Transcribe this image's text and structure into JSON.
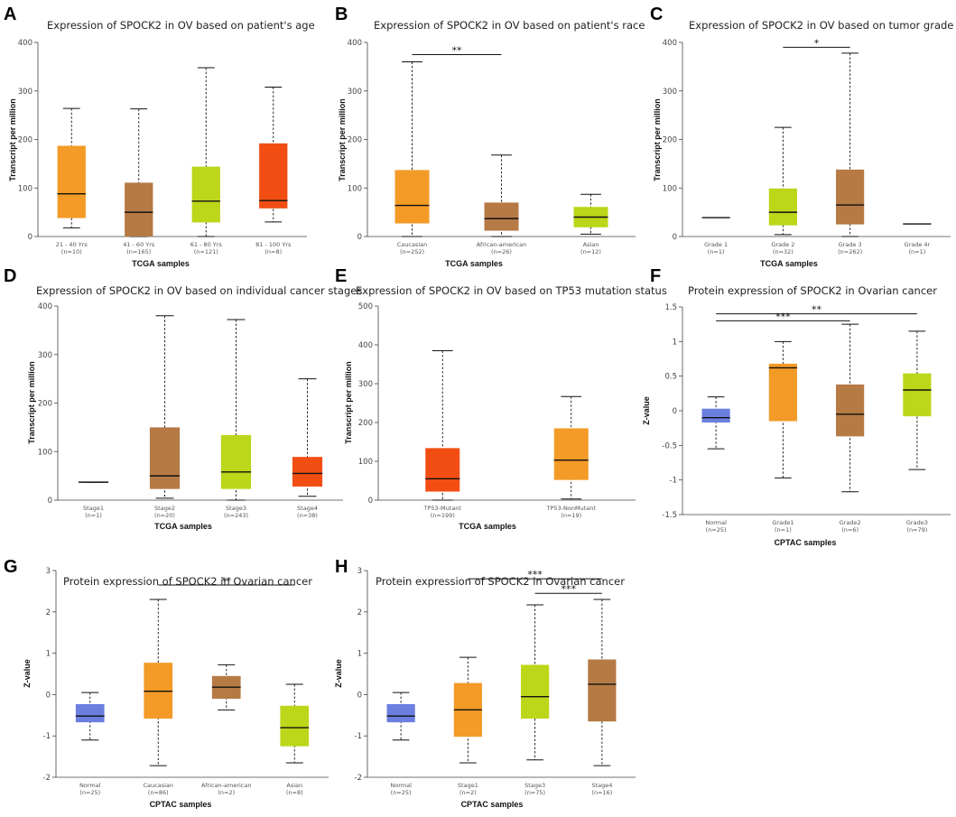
{
  "figure": {
    "panels": [
      "A",
      "B",
      "C",
      "D",
      "E",
      "F",
      "G",
      "H"
    ]
  },
  "chart_data": [
    {
      "panel": "A",
      "type": "boxplot",
      "title": "Expression of SPOCK2 in OV based on patient's age",
      "xlabel": "TCGA samples",
      "ylabel": "Transcript per million",
      "ylim": [
        0,
        400
      ],
      "yticks": [
        0,
        100,
        200,
        300,
        400
      ],
      "categories": [
        "21 - 40 Yrs",
        "41 - 60 Yrs",
        "61 - 80 Yrs",
        "81 - 100 Yrs"
      ],
      "counts": [
        "(n=10)",
        "(n=165)",
        "(n=121)",
        "(n=8)"
      ],
      "colors": [
        "#f39a27",
        "#b67a45",
        "#bcd619",
        "#f24e13"
      ],
      "boxes": [
        {
          "min": 18,
          "q1": 38,
          "median": 88,
          "q3": 187,
          "max": 264
        },
        {
          "min": 0,
          "q1": 0,
          "median": 50,
          "q3": 111,
          "max": 263
        },
        {
          "min": 0,
          "q1": 29,
          "median": 73,
          "q3": 144,
          "max": 348
        },
        {
          "min": 30,
          "q1": 58,
          "median": 74,
          "q3": 192,
          "max": 308
        }
      ],
      "significance": []
    },
    {
      "panel": "B",
      "type": "boxplot",
      "title": "Expression of SPOCK2 in OV based on patient's race",
      "xlabel": "TCGA samples",
      "ylabel": "Transcript per million",
      "ylim": [
        0,
        400
      ],
      "yticks": [
        0,
        100,
        200,
        300,
        400
      ],
      "categories": [
        "Caucasian",
        "African-american",
        "Asian"
      ],
      "counts": [
        "(n=252)",
        "(n=26)",
        "(n=12)"
      ],
      "colors": [
        "#f39a27",
        "#b67a45",
        "#bcd619"
      ],
      "boxes": [
        {
          "min": 0,
          "q1": 27,
          "median": 64,
          "q3": 137,
          "max": 360
        },
        {
          "min": 0,
          "q1": 12,
          "median": 37,
          "q3": 70,
          "max": 168
        },
        {
          "min": 5,
          "q1": 19,
          "median": 40,
          "q3": 61,
          "max": 87
        }
      ],
      "significance": [
        {
          "from": 0,
          "to": 1,
          "label": "**",
          "y": 375
        }
      ]
    },
    {
      "panel": "C",
      "type": "boxplot",
      "title": "Expression of SPOCK2 in OV based on tumor grade",
      "xlabel": "TCGA samples",
      "ylabel": "Transcript per million",
      "ylim": [
        0,
        400
      ],
      "yticks": [
        0,
        100,
        200,
        300,
        400
      ],
      "categories": [
        "Grade 1",
        "Grade 2",
        "Grade 3",
        "Grade 4r"
      ],
      "counts": [
        "(n=1)",
        "(n=32)",
        "(n=262)",
        "(n=1)"
      ],
      "colors": [
        "#f39a27",
        "#bcd619",
        "#b67a45",
        "#f24e13"
      ],
      "boxes": [
        {
          "min": 39,
          "q1": 39,
          "median": 39,
          "q3": 39,
          "max": 39
        },
        {
          "min": 4,
          "q1": 23,
          "median": 50,
          "q3": 99,
          "max": 225
        },
        {
          "min": 0,
          "q1": 25,
          "median": 65,
          "q3": 138,
          "max": 378
        },
        {
          "min": 26,
          "q1": 26,
          "median": 26,
          "q3": 26,
          "max": 26
        }
      ],
      "significance": [
        {
          "from": 1,
          "to": 2,
          "label": "*",
          "y": 390
        }
      ]
    },
    {
      "panel": "D",
      "type": "boxplot",
      "title": "Expression of SPOCK2 in OV based on individual cancer stages",
      "xlabel": "TCGA samples",
      "ylabel": "Transcript per million",
      "ylim": [
        0,
        400
      ],
      "yticks": [
        0,
        100,
        200,
        300,
        400
      ],
      "categories": [
        "Stage1",
        "Stage2",
        "Stage3",
        "Stage4"
      ],
      "counts": [
        "(n=1)",
        "(n=20)",
        "(n=243)",
        "(n=38)"
      ],
      "colors": [
        "#f39a27",
        "#b67a45",
        "#bcd619",
        "#f24e13"
      ],
      "boxes": [
        {
          "min": 37,
          "q1": 37,
          "median": 37,
          "q3": 37,
          "max": 37
        },
        {
          "min": 4,
          "q1": 23,
          "median": 50,
          "q3": 150,
          "max": 380
        },
        {
          "min": 0,
          "q1": 23,
          "median": 58,
          "q3": 134,
          "max": 372
        },
        {
          "min": 8,
          "q1": 28,
          "median": 55,
          "q3": 89,
          "max": 250
        }
      ],
      "significance": []
    },
    {
      "panel": "E",
      "type": "boxplot",
      "title": "Expression of SPOCK2 in OV based on TP53 mutation status",
      "xlabel": "TCGA samples",
      "ylabel": "Transcript per million",
      "ylim": [
        0,
        500
      ],
      "yticks": [
        0,
        100,
        200,
        300,
        400,
        500
      ],
      "categories": [
        "TP53-Mutant",
        "TP53-NonMutant"
      ],
      "counts": [
        "(n=199)",
        "(n=19)"
      ],
      "colors": [
        "#f24e13",
        "#f39a27"
      ],
      "boxes": [
        {
          "min": 0,
          "q1": 22,
          "median": 55,
          "q3": 134,
          "max": 385
        },
        {
          "min": 3,
          "q1": 52,
          "median": 103,
          "q3": 185,
          "max": 267
        }
      ],
      "significance": []
    },
    {
      "panel": "F",
      "type": "boxplot",
      "title": "Protein expression of SPOCK2 in Ovarian cancer",
      "xlabel": "CPTAC samples",
      "ylabel": "Z-value",
      "ylim": [
        -1.5,
        1.5
      ],
      "yticks": [
        -1.5,
        -1,
        -0.5,
        0,
        0.5,
        1,
        1.5
      ],
      "categories": [
        "Normal",
        "Grade1",
        "Grade2",
        "Grade3"
      ],
      "counts": [
        "(n=25)",
        "(n=1)",
        "(n=6)",
        "(n=79)"
      ],
      "colors": [
        "#6b7fe0",
        "#f39a27",
        "#b67a45",
        "#bcd619"
      ],
      "boxes": [
        {
          "min": -0.55,
          "q1": -0.17,
          "median": -0.1,
          "q3": 0.03,
          "max": 0.2
        },
        {
          "min": -0.97,
          "q1": -0.15,
          "median": 0.62,
          "q3": 0.68,
          "max": 1.0
        },
        {
          "min": -1.17,
          "q1": -0.37,
          "median": -0.05,
          "q3": 0.38,
          "max": 1.25
        },
        {
          "min": -0.85,
          "q1": -0.08,
          "median": 0.3,
          "q3": 0.54,
          "max": 1.15
        }
      ],
      "significance": [
        {
          "from": 0,
          "to": 3,
          "label": "**",
          "y": 1.4
        },
        {
          "from": 0,
          "to": 2,
          "label": "***",
          "y": 1.3
        }
      ]
    },
    {
      "panel": "G",
      "type": "boxplot",
      "title": "Protein expression of SPOCK2 in Ovarian cancer",
      "xlabel": "CPTAC samples",
      "ylabel": "Z-value",
      "ylim": [
        -2,
        3
      ],
      "yticks": [
        -2,
        -1,
        0,
        1,
        2,
        3
      ],
      "categories": [
        "Normal",
        "Caucasian",
        "African-american",
        "Asian"
      ],
      "counts": [
        "(n=25)",
        "(n=86)",
        "(n=2)",
        "(n=8)"
      ],
      "colors": [
        "#6b7fe0",
        "#f39a27",
        "#b67a45",
        "#bcd619"
      ],
      "boxes": [
        {
          "min": -1.1,
          "q1": -0.67,
          "median": -0.52,
          "q3": -0.23,
          "max": 0.05
        },
        {
          "min": -1.72,
          "q1": -0.58,
          "median": 0.08,
          "q3": 0.77,
          "max": 2.3
        },
        {
          "min": -0.37,
          "q1": -0.1,
          "median": 0.18,
          "q3": 0.45,
          "max": 0.72
        },
        {
          "min": -1.65,
          "q1": -1.25,
          "median": -0.8,
          "q3": -0.27,
          "max": 0.25
        }
      ],
      "significance": [
        {
          "from": 1,
          "to": 3,
          "label": "**",
          "y": 2.65
        }
      ]
    },
    {
      "panel": "H",
      "type": "boxplot",
      "title": "Protein expression of SPOCK2 in Ovarian cancer",
      "xlabel": "CPTAC samples",
      "ylabel": "Z-value",
      "ylim": [
        -2,
        3
      ],
      "yticks": [
        -2,
        -1,
        0,
        1,
        2,
        3
      ],
      "categories": [
        "Normal",
        "Stage1",
        "Stage3",
        "Stage4"
      ],
      "counts": [
        "(n=25)",
        "(n=2)",
        "(n=75)",
        "(n=16)"
      ],
      "colors": [
        "#6b7fe0",
        "#f39a27",
        "#bcd619",
        "#b67a45"
      ],
      "boxes": [
        {
          "min": -1.1,
          "q1": -0.67,
          "median": -0.52,
          "q3": -0.23,
          "max": 0.05
        },
        {
          "min": -1.65,
          "q1": -1.02,
          "median": -0.37,
          "q3": 0.28,
          "max": 0.9
        },
        {
          "min": -1.58,
          "q1": -0.58,
          "median": -0.05,
          "q3": 0.72,
          "max": 2.17
        },
        {
          "min": -1.72,
          "q1": -0.65,
          "median": 0.25,
          "q3": 0.85,
          "max": 2.3
        }
      ],
      "significance": [
        {
          "from": 1,
          "to": 3,
          "label": "***",
          "y": 2.8
        },
        {
          "from": 2,
          "to": 3,
          "label": "***",
          "y": 2.45
        }
      ]
    }
  ]
}
